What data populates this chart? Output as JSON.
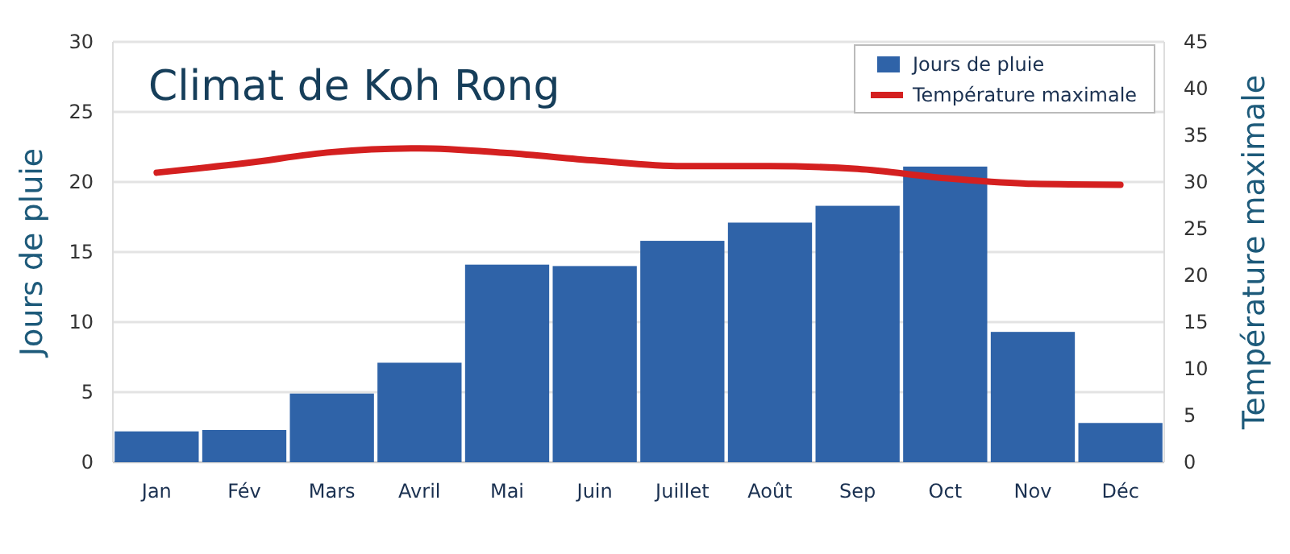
{
  "chart_data": {
    "type": "bar",
    "title": "Climat de Koh Rong",
    "ylabel": "Jours de pluie",
    "y2label": "Température maximale",
    "categories": [
      "Jan",
      "Fév",
      "Mars",
      "Avril",
      "Mai",
      "Juin",
      "Juillet",
      "Août",
      "Sep",
      "Oct",
      "Nov",
      "Déc"
    ],
    "series": [
      {
        "name": "Jours de pluie",
        "color": "#2f63a8",
        "values": [
          2.2,
          2.3,
          4.9,
          7.1,
          14.1,
          14.0,
          15.8,
          17.1,
          18.3,
          21.1,
          9.3,
          2.8
        ]
      },
      {
        "name": "Température maximale",
        "type": "line",
        "axis": "y2",
        "color": "#d42020",
        "values": [
          31,
          32,
          33.2,
          33.6,
          33.1,
          32.3,
          31.7,
          31.7,
          31.4,
          30.4,
          29.8,
          29.7
        ]
      }
    ],
    "ylim": [
      0,
      30
    ],
    "yticks": [
      0,
      5,
      10,
      15,
      20,
      25,
      30
    ],
    "y2lim": [
      0,
      45
    ],
    "y2ticks": [
      0,
      5,
      10,
      15,
      20,
      25,
      30,
      35,
      40,
      45
    ],
    "grid": "y",
    "legend": "top right",
    "line_style": "solid",
    "marker": "none"
  }
}
